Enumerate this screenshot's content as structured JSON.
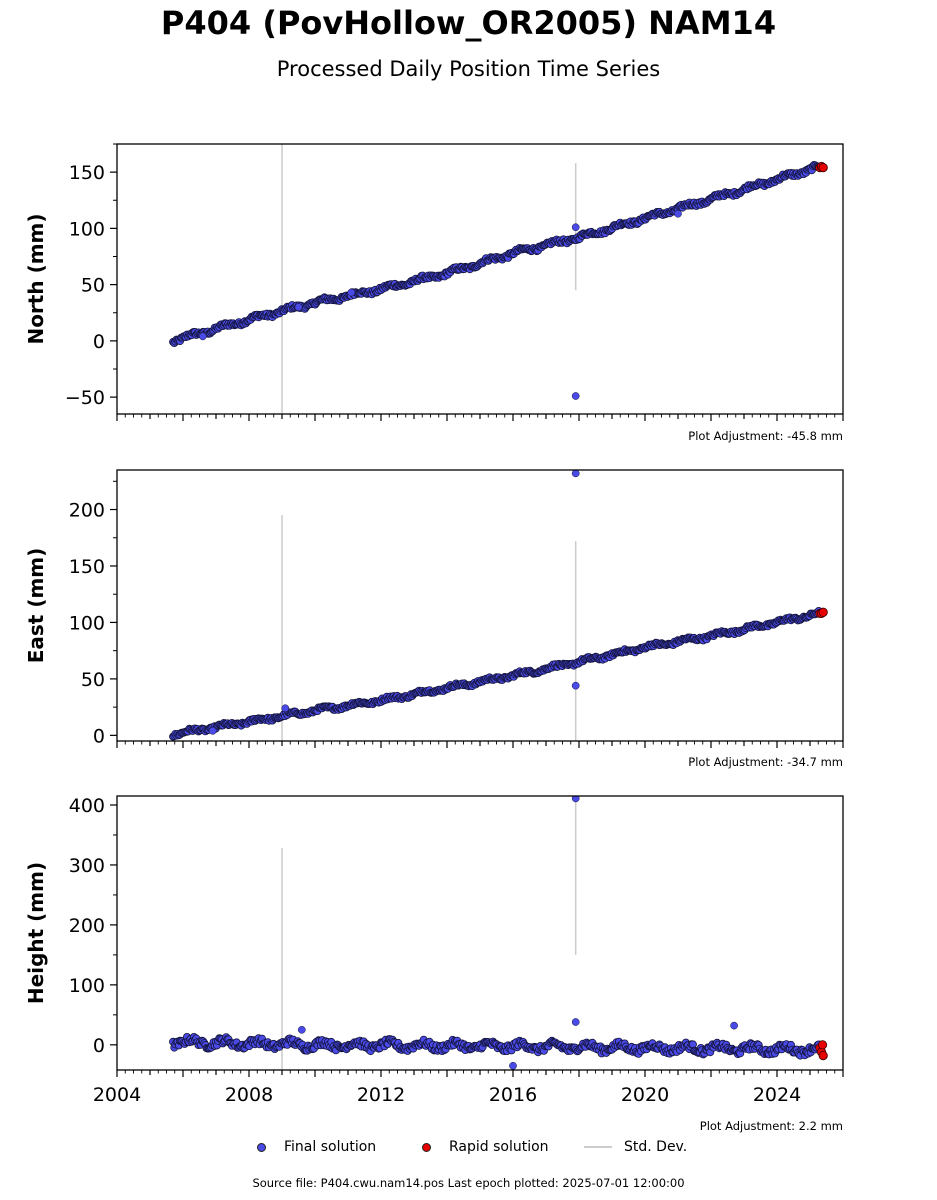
{
  "title": "P404 (PovHollow_OR2005) NAM14",
  "subtitle": "Processed Daily Position Time Series",
  "legend": {
    "final_label": "Final solution",
    "rapid_label": "Rapid solution",
    "std_label": "Std. Dev.",
    "final_color": "#4a4ae6",
    "rapid_color": "#e60000",
    "std_color": "#cccccc"
  },
  "footer": "Source file: P404.cwu.nam14.pos  Last epoch plotted: 2025-07-01 12:00:00",
  "chart_data": [
    {
      "type": "scatter",
      "ylabel": "North (mm)",
      "adjustment": "Plot Adjustment: -45.8 mm",
      "xlim": [
        2004,
        2026
      ],
      "ylim": [
        -65,
        175
      ],
      "yticks": [
        -50,
        0,
        50,
        100,
        150
      ],
      "xticks": [
        2004,
        2008,
        2012,
        2016,
        2020,
        2024
      ],
      "show_xtick_labels": false,
      "series": [
        {
          "kind": "final",
          "trend": [
            [
              2005.7,
              0
            ],
            [
              2008,
              19
            ],
            [
              2010,
              34
            ],
            [
              2012,
              46
            ],
            [
              2014,
              60
            ],
            [
              2016,
              78
            ],
            [
              2018,
              92
            ],
            [
              2020,
              109
            ],
            [
              2022,
              126
            ],
            [
              2025.3,
              155
            ]
          ],
          "noise": 2.2,
          "outliers": [
            [
              2006.6,
              4
            ],
            [
              2009.5,
              30
            ],
            [
              2011.1,
              43
            ],
            [
              2017.9,
              101
            ],
            [
              2017.9,
              -49
            ],
            [
              2021,
              113
            ]
          ]
        },
        {
          "kind": "rapid",
          "points": [
            [
              2025.3,
              154
            ],
            [
              2025.35,
              155
            ],
            [
              2025.4,
              154
            ]
          ]
        }
      ],
      "std_dev": [
        [
          2009.0,
          -65,
          175
        ],
        [
          2017.9,
          45,
          158
        ]
      ]
    },
    {
      "type": "scatter",
      "ylabel": "East (mm)",
      "adjustment": "Plot Adjustment: -34.7 mm",
      "xlim": [
        2004,
        2026
      ],
      "ylim": [
        -5,
        235
      ],
      "yticks": [
        0,
        50,
        100,
        150,
        200
      ],
      "xticks": [
        2004,
        2008,
        2012,
        2016,
        2020,
        2024
      ],
      "show_xtick_labels": false,
      "series": [
        {
          "kind": "final",
          "trend": [
            [
              2005.7,
              1
            ],
            [
              2008,
              12
            ],
            [
              2010,
              22
            ],
            [
              2012,
              31
            ],
            [
              2014,
              42
            ],
            [
              2016,
              53
            ],
            [
              2018,
              65
            ],
            [
              2020,
              78
            ],
            [
              2022,
              88
            ],
            [
              2025.3,
              108
            ]
          ],
          "noise": 1.8,
          "outliers": [
            [
              2009.1,
              24
            ],
            [
              2017.9,
              232
            ],
            [
              2017.9,
              44
            ],
            [
              2006.9,
              4
            ]
          ]
        },
        {
          "kind": "rapid",
          "points": [
            [
              2025.3,
              108
            ],
            [
              2025.35,
              108
            ],
            [
              2025.4,
              109
            ]
          ]
        }
      ],
      "std_dev": [
        [
          2009.0,
          -5,
          195
        ],
        [
          2017.9,
          -5,
          172
        ]
      ]
    },
    {
      "type": "scatter",
      "ylabel": "Height (mm)",
      "adjustment": "Plot Adjustment: 2.2 mm",
      "xlim": [
        2004,
        2026
      ],
      "ylim": [
        -42,
        415
      ],
      "yticks": [
        0,
        100,
        200,
        300,
        400
      ],
      "xticks": [
        2004,
        2008,
        2012,
        2016,
        2020,
        2024
      ],
      "xtick_labels": [
        "2004",
        "2008",
        "2012",
        "2016",
        "2020",
        "2024"
      ],
      "show_xtick_labels": true,
      "series": [
        {
          "kind": "final",
          "trend": [
            [
              2005.7,
              5
            ],
            [
              2010,
              0
            ],
            [
              2015,
              -2
            ],
            [
              2020,
              -5
            ],
            [
              2025.3,
              -8
            ]
          ],
          "noise": 7,
          "outliers": [
            [
              2017.9,
              411
            ],
            [
              2017.9,
              38
            ],
            [
              2022.7,
              32
            ],
            [
              2016,
              -35
            ],
            [
              2009.6,
              25
            ]
          ]
        },
        {
          "kind": "rapid",
          "points": [
            [
              2025.3,
              -5
            ],
            [
              2025.35,
              -12
            ],
            [
              2025.4,
              -18
            ],
            [
              2025.38,
              0
            ]
          ]
        }
      ],
      "std_dev": [
        [
          2009.0,
          -42,
          328
        ],
        [
          2017.9,
          150,
          415
        ]
      ]
    }
  ]
}
